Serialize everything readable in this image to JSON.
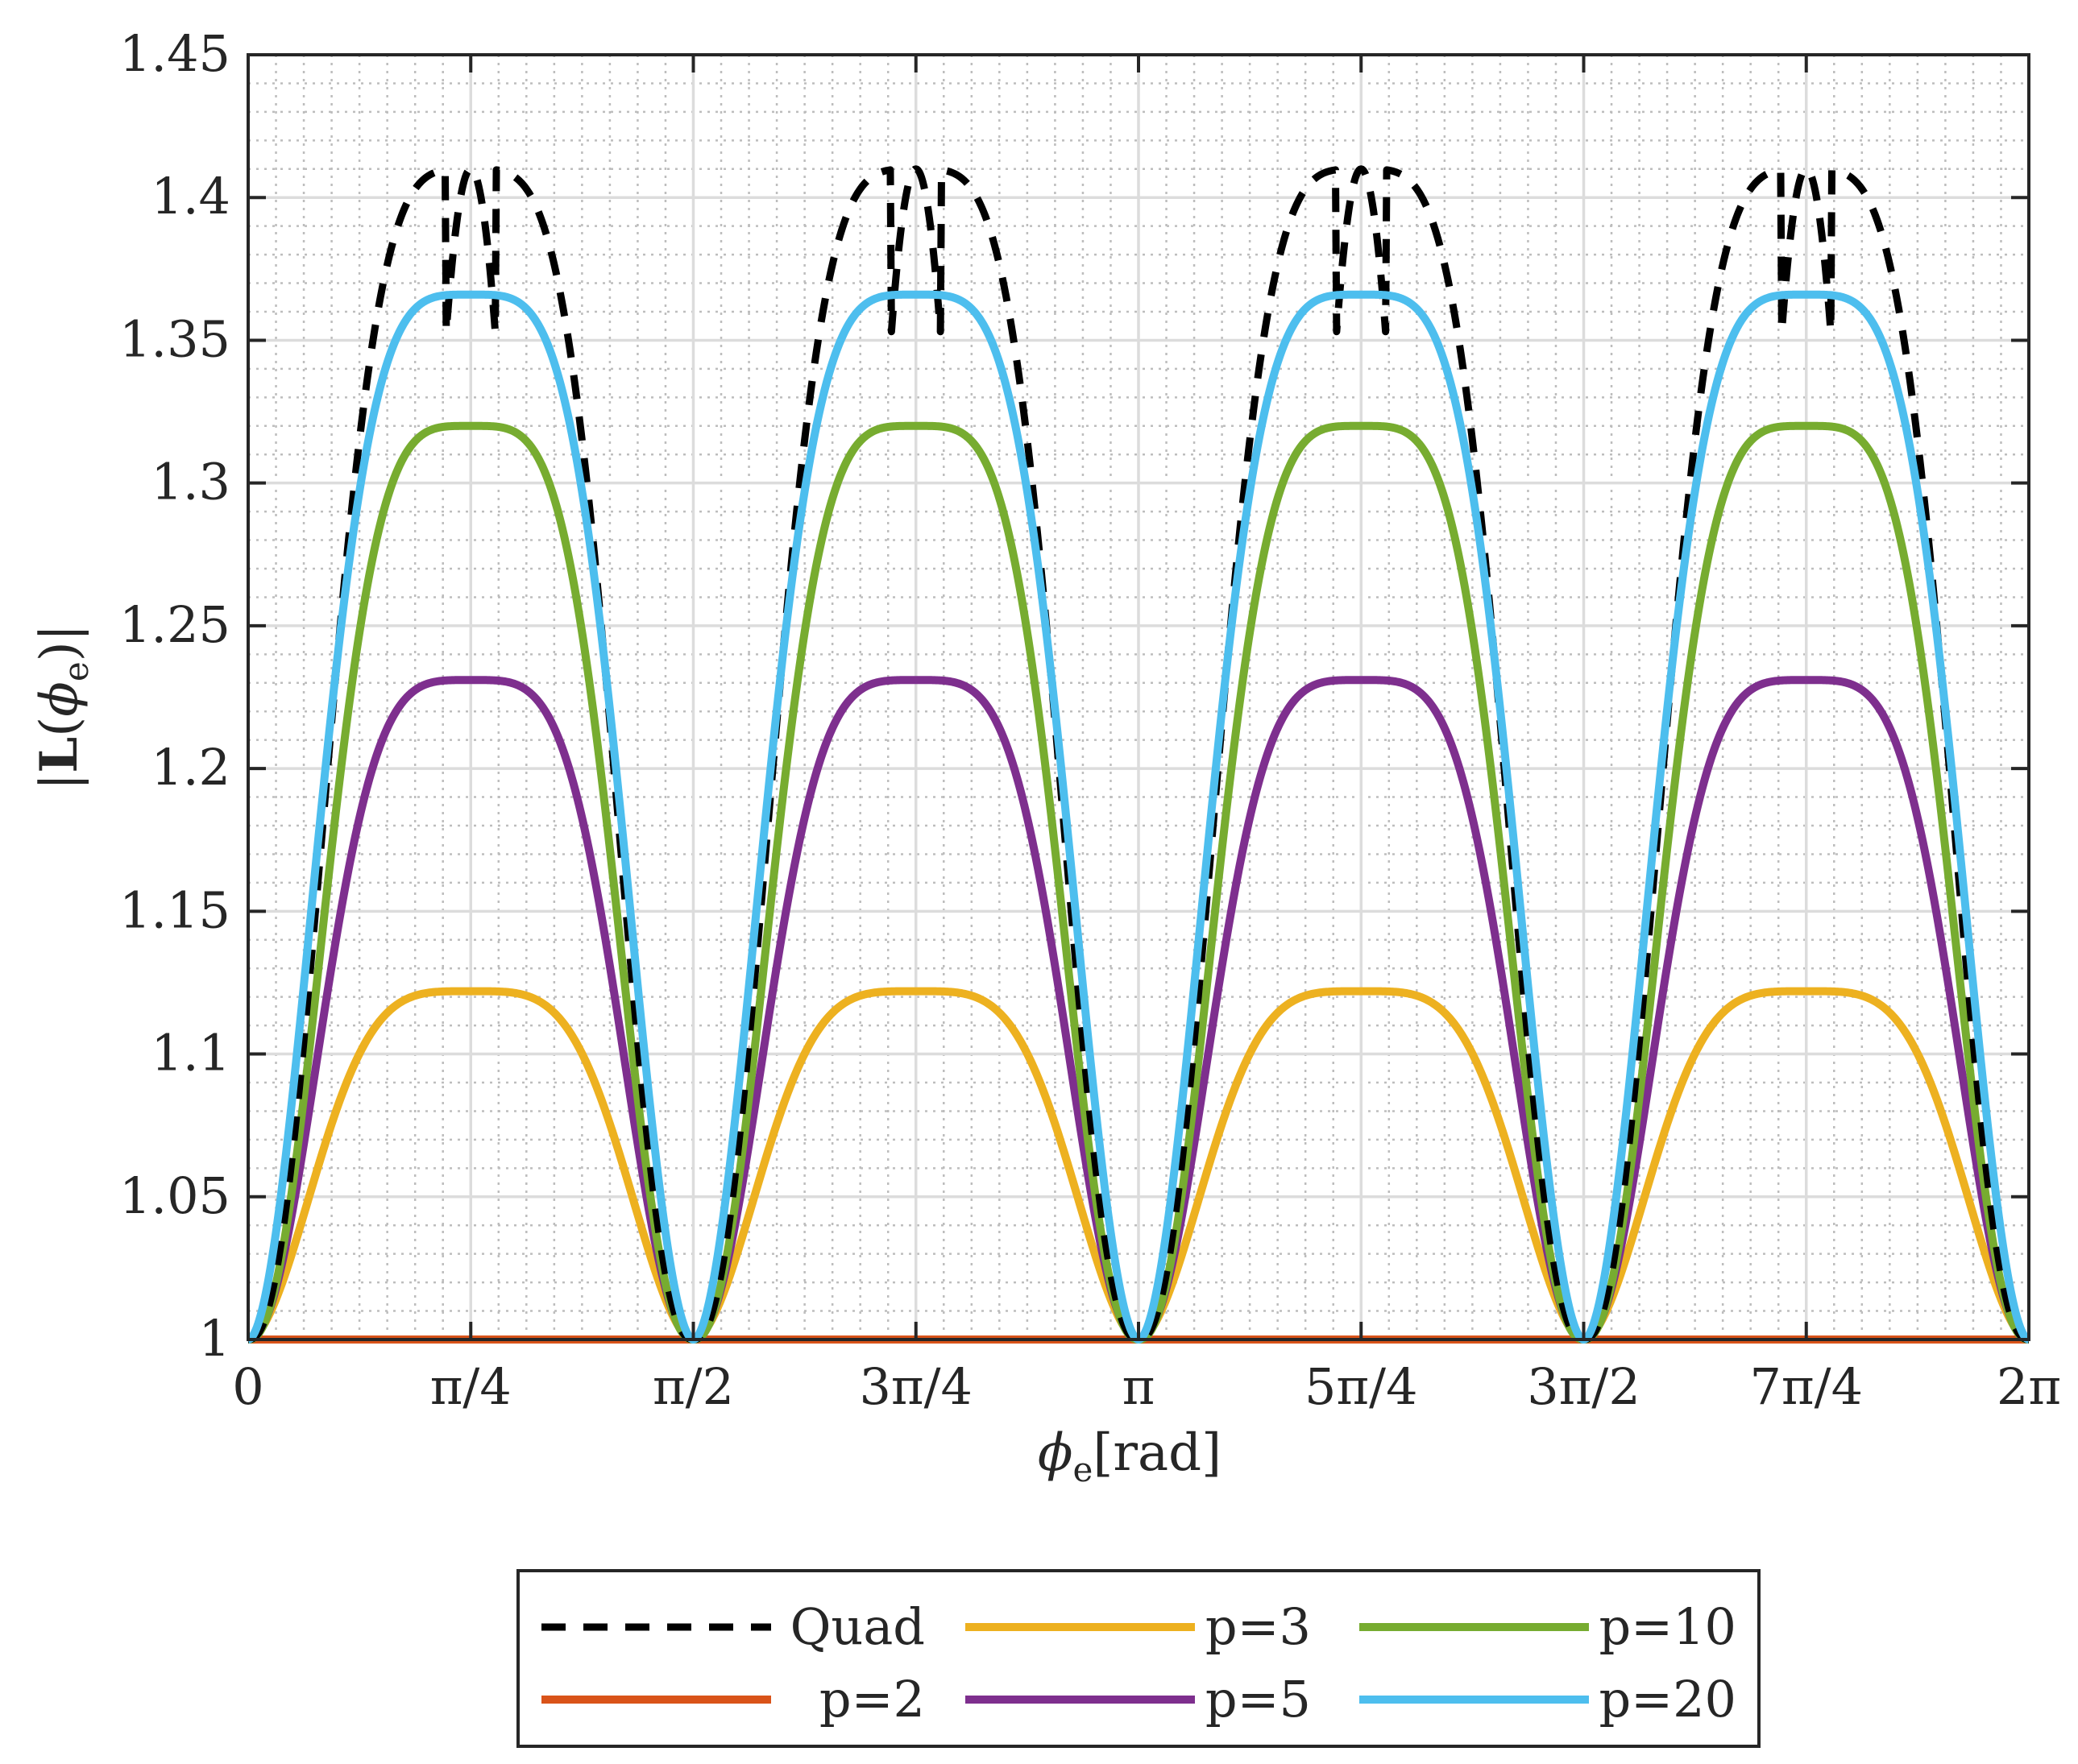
{
  "chart_data": {
    "type": "line",
    "title": "",
    "xlabel": "ϕe[rad]",
    "ylabel": "|L(ϕe)|",
    "xlim": [
      0,
      6.283185307
    ],
    "ylim": [
      1,
      1.45
    ],
    "grid": true,
    "minor_grid": true,
    "x_ticks": {
      "values": [
        0,
        0.785398,
        1.570796,
        2.356194,
        3.141593,
        3.926991,
        4.712389,
        5.497787,
        6.283185
      ],
      "labels": [
        "0",
        "π/4",
        "π/2",
        "3π/4",
        "π",
        "5π/4",
        "3π/2",
        "7π/4",
        "2π"
      ]
    },
    "y_ticks": {
      "values": [
        1,
        1.05,
        1.1,
        1.15,
        1.2,
        1.25,
        1.3,
        1.35,
        1.4,
        1.45
      ],
      "labels": [
        "1",
        "1.05",
        "1.1",
        "1.15",
        "1.2",
        "1.25",
        "1.3",
        "1.35",
        "1.4",
        "1.45"
      ]
    },
    "legend_position": "below plot, 3 columns",
    "series": [
      {
        "name": "Quad",
        "style": "dashed",
        "color": "#000000",
        "peak_value": 1.41,
        "min_value": 1.0,
        "peaks_at": [
          0.785398,
          2.356194,
          3.926991,
          5.497787
        ]
      },
      {
        "name": "p=2",
        "style": "solid",
        "color": "#D95319",
        "peak_value": 1.0,
        "min_value": 1.0,
        "peaks_at": []
      },
      {
        "name": "p=3",
        "style": "solid",
        "color": "#EDB120",
        "peak_value": 1.122,
        "min_value": 1.0,
        "peaks_at": [
          0.785398,
          2.356194,
          3.926991,
          5.497787
        ]
      },
      {
        "name": "p=5",
        "style": "solid",
        "color": "#7E2F8E",
        "peak_value": 1.231,
        "min_value": 1.0,
        "peaks_at": [
          0.785398,
          2.356194,
          3.926991,
          5.497787
        ]
      },
      {
        "name": "p=10",
        "style": "solid",
        "color": "#77AC30",
        "peak_value": 1.32,
        "min_value": 1.0,
        "peaks_at": [
          0.785398,
          2.356194,
          3.926991,
          5.497787
        ]
      },
      {
        "name": "p=20",
        "style": "solid",
        "color": "#4DBEEE",
        "peak_value": 1.366,
        "min_value": 1.0,
        "peaks_at": [
          0.785398,
          2.356194,
          3.926991,
          5.497787
        ]
      }
    ]
  }
}
